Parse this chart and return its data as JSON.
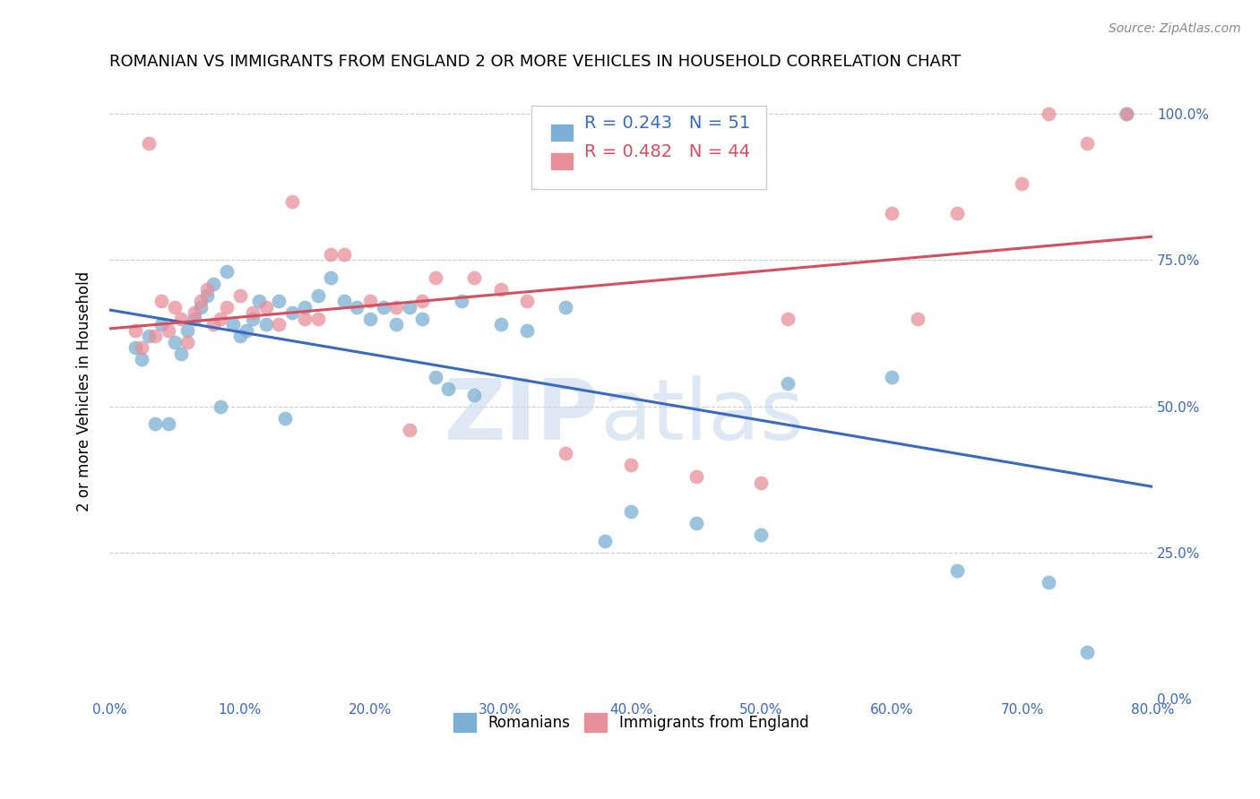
{
  "title": "ROMANIAN VS IMMIGRANTS FROM ENGLAND 2 OR MORE VEHICLES IN HOUSEHOLD CORRELATION CHART",
  "source": "Source: ZipAtlas.com",
  "ylabel": "2 or more Vehicles in Household",
  "xlim": [
    0.0,
    0.8
  ],
  "ylim": [
    0.0,
    1.05
  ],
  "blue_R": 0.243,
  "blue_N": 51,
  "pink_R": 0.482,
  "pink_N": 44,
  "blue_color": "#7bafd4",
  "pink_color": "#e8909a",
  "blue_line_color": "#3a6abf",
  "pink_line_color": "#d45060",
  "legend_label_blue": "Romanians",
  "legend_label_pink": "Immigrants from England",
  "blue_x": [
    0.02,
    0.03,
    0.025,
    0.04,
    0.05,
    0.06,
    0.055,
    0.065,
    0.07,
    0.075,
    0.08,
    0.09,
    0.095,
    0.1,
    0.105,
    0.11,
    0.115,
    0.12,
    0.13,
    0.14,
    0.15,
    0.16,
    0.17,
    0.18,
    0.19,
    0.2,
    0.21,
    0.22,
    0.23,
    0.24,
    0.25,
    0.26,
    0.27,
    0.28,
    0.3,
    0.32,
    0.35,
    0.38,
    0.4,
    0.45,
    0.5,
    0.52,
    0.6,
    0.65,
    0.72,
    0.75,
    0.78,
    0.035,
    0.045,
    0.085,
    0.135
  ],
  "blue_y": [
    0.6,
    0.62,
    0.58,
    0.64,
    0.61,
    0.63,
    0.59,
    0.65,
    0.67,
    0.69,
    0.71,
    0.73,
    0.64,
    0.62,
    0.63,
    0.65,
    0.68,
    0.64,
    0.68,
    0.66,
    0.67,
    0.69,
    0.72,
    0.68,
    0.67,
    0.65,
    0.67,
    0.64,
    0.67,
    0.65,
    0.55,
    0.53,
    0.68,
    0.52,
    0.64,
    0.63,
    0.67,
    0.27,
    0.32,
    0.3,
    0.28,
    0.54,
    0.55,
    0.22,
    0.2,
    0.08,
    1.0,
    0.47,
    0.47,
    0.5,
    0.48
  ],
  "pink_x": [
    0.02,
    0.025,
    0.03,
    0.035,
    0.04,
    0.045,
    0.05,
    0.055,
    0.06,
    0.065,
    0.07,
    0.075,
    0.08,
    0.085,
    0.09,
    0.1,
    0.11,
    0.12,
    0.13,
    0.14,
    0.15,
    0.16,
    0.17,
    0.18,
    0.2,
    0.22,
    0.23,
    0.24,
    0.25,
    0.28,
    0.3,
    0.32,
    0.35,
    0.4,
    0.45,
    0.5,
    0.6,
    0.65,
    0.7,
    0.72,
    0.75,
    0.78,
    0.52,
    0.62
  ],
  "pink_y": [
    0.63,
    0.6,
    0.95,
    0.62,
    0.68,
    0.63,
    0.67,
    0.65,
    0.61,
    0.66,
    0.68,
    0.7,
    0.64,
    0.65,
    0.67,
    0.69,
    0.66,
    0.67,
    0.64,
    0.85,
    0.65,
    0.65,
    0.76,
    0.76,
    0.68,
    0.67,
    0.46,
    0.68,
    0.72,
    0.72,
    0.7,
    0.68,
    0.42,
    0.4,
    0.38,
    0.37,
    0.83,
    0.83,
    0.88,
    1.0,
    0.95,
    1.0,
    0.65,
    0.65
  ]
}
